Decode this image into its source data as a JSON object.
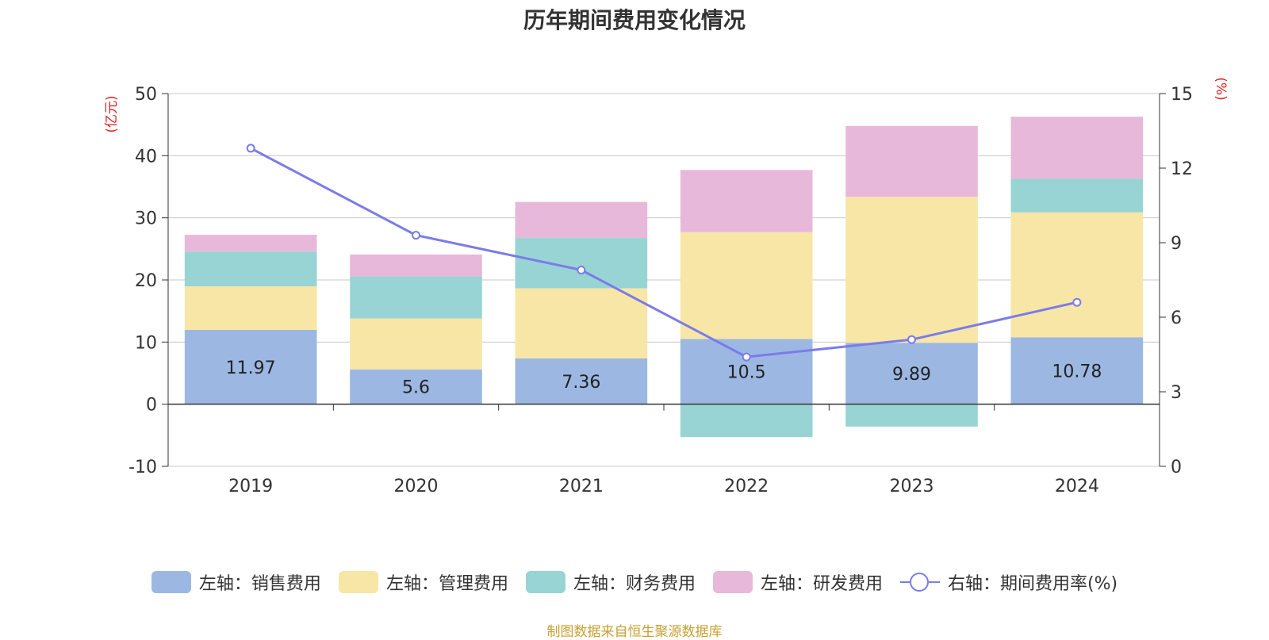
{
  "chart_data": {
    "type": "bar",
    "title": "历年期间费用变化情况",
    "categories": [
      "2019",
      "2020",
      "2021",
      "2022",
      "2023",
      "2024"
    ],
    "series": [
      {
        "name": "左轴：销售费用",
        "axis": "left",
        "kind": "bar",
        "color": "#9cb8e2",
        "values": [
          11.97,
          5.6,
          7.36,
          10.5,
          9.89,
          10.78
        ],
        "labels": [
          "11.97",
          "5.6",
          "7.36",
          "10.5",
          "9.89",
          "10.78"
        ]
      },
      {
        "name": "左轴：管理费用",
        "axis": "left",
        "kind": "bar",
        "color": "#f7e6a6",
        "values": [
          7.0,
          8.2,
          11.3,
          17.2,
          23.5,
          20.1
        ]
      },
      {
        "name": "左轴：财务费用",
        "axis": "left",
        "kind": "bar",
        "color": "#98d4d4",
        "values": [
          5.6,
          6.8,
          8.1,
          -5.3,
          -3.6,
          5.4
        ]
      },
      {
        "name": "左轴：研发费用",
        "axis": "left",
        "kind": "bar",
        "color": "#e8b8da",
        "values": [
          2.7,
          3.5,
          5.8,
          10.0,
          11.4,
          10.0
        ]
      },
      {
        "name": "右轴：期间费用率(%)",
        "axis": "right",
        "kind": "line",
        "color": "#7b7bea",
        "values": [
          12.8,
          9.3,
          7.9,
          4.4,
          5.1,
          6.6
        ]
      }
    ],
    "y_left": {
      "unit": "(亿元)",
      "range": [
        -10,
        50
      ],
      "ticks": [
        -10,
        0,
        10,
        20,
        30,
        40,
        50
      ]
    },
    "y_right": {
      "unit": "(%)",
      "range": [
        0,
        15
      ],
      "ticks": [
        0,
        3,
        6,
        9,
        12,
        15
      ]
    },
    "grid": true,
    "legend_position": "bottom"
  },
  "source": "制图数据来自恒生聚源数据库"
}
